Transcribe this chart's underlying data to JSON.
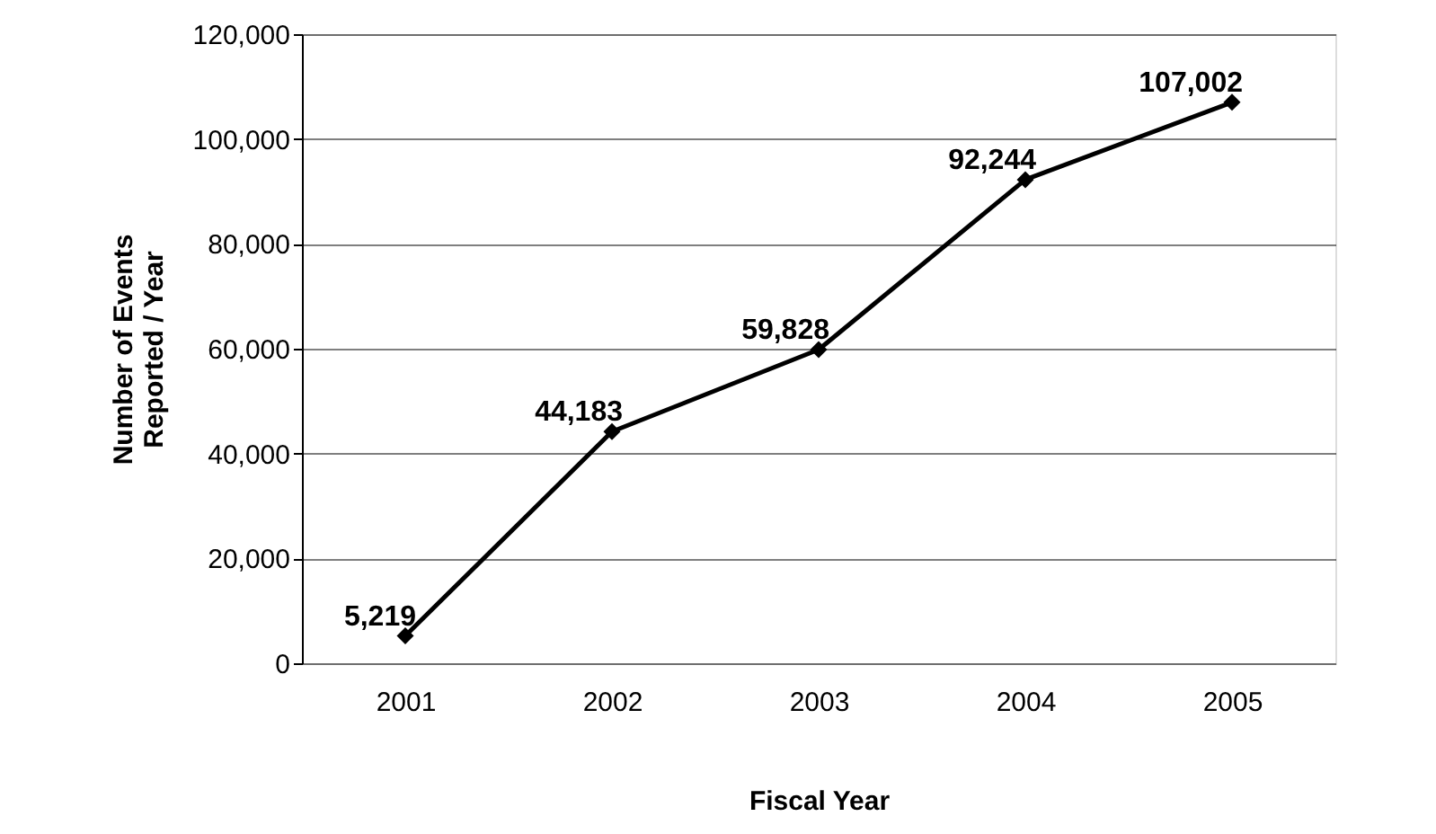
{
  "chart_data": {
    "type": "line",
    "xlabel": "Fiscal Year",
    "ylabel": "Number of Events Reported / Year",
    "categories": [
      "2001",
      "2002",
      "2003",
      "2004",
      "2005"
    ],
    "series": [
      {
        "color": "#000000",
        "values": [
          5219,
          44183,
          59828,
          92244,
          107002
        ],
        "value_labels": [
          "5,219",
          "44,183",
          "59,828",
          "92,244",
          "107,002"
        ]
      }
    ],
    "ylim": [
      0,
      120000
    ],
    "yticks": [
      0,
      {
        "value": 20000,
        "label": "20,000"
      },
      {
        "value": 40000,
        "label": "40,000"
      },
      {
        "value": 60000,
        "label": "60,000"
      },
      {
        "value": 80000,
        "label": "80,000"
      },
      {
        "value": 100000,
        "label": "100,000"
      },
      {
        "value": 120000,
        "label": "120,000"
      }
    ],
    "grid": "y",
    "marker": "diamond",
    "line_style": "solid",
    "legend": false
  }
}
